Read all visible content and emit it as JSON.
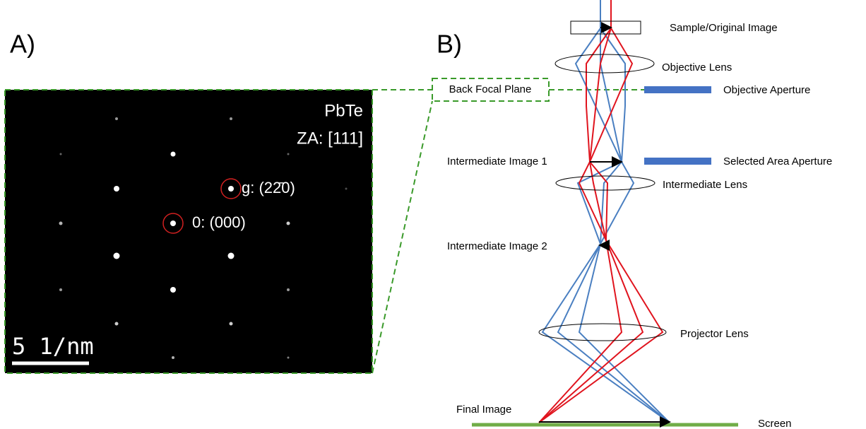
{
  "panel_a": {
    "label": "A)",
    "material": "PbTe",
    "zone_axis": "ZA: [111]",
    "spot_g": "g: (22̄0)",
    "spot_0": "0: (000)",
    "scale_bar": "5 1/nm"
  },
  "panel_b": {
    "label": "B)",
    "back_focal_plane": "Back Focal Plane",
    "sample": "Sample/Original Image",
    "objective_lens": "Objective Lens",
    "objective_aperture": "Objective Aperture",
    "intermediate_image_1": "Intermediate Image 1",
    "selected_area_aperture": "Selected Area Aperture",
    "intermediate_lens": "Intermediate Lens",
    "intermediate_image_2": "Intermediate Image 2",
    "projector_lens": "Projector Lens",
    "final_image": "Final Image",
    "screen": "Screen"
  }
}
